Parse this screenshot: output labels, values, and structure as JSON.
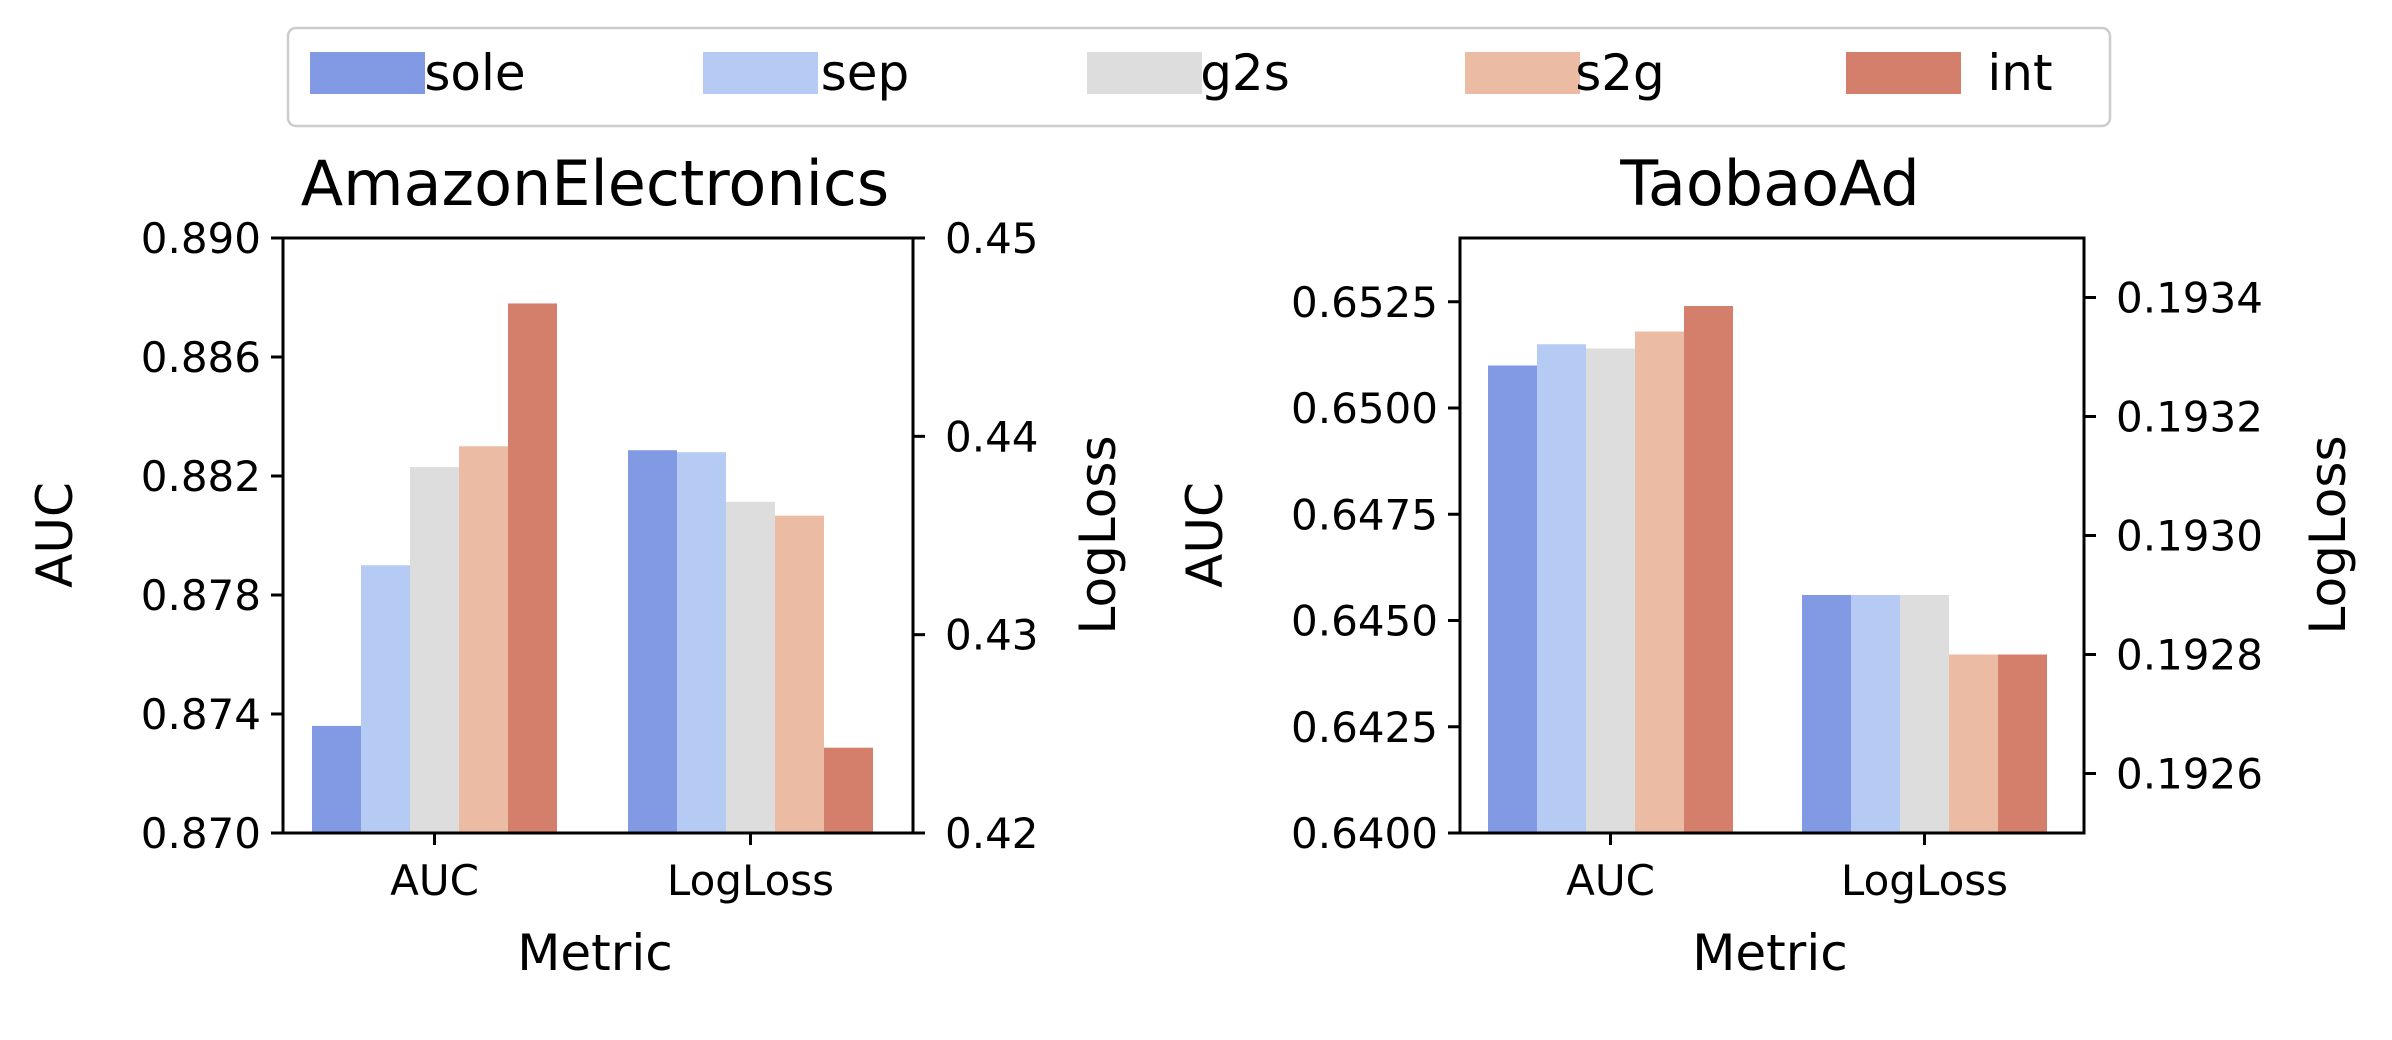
{
  "legend": {
    "entries": [
      {
        "label": "sole",
        "color": "#8299e3"
      },
      {
        "label": "sep",
        "color": "#b6cbf3"
      },
      {
        "label": "g2s",
        "color": "#dddddd"
      },
      {
        "label": "s2g",
        "color": "#ecbba3"
      },
      {
        "label": "int",
        "color": "#d47e6c"
      }
    ]
  },
  "chart_data": [
    {
      "type": "bar",
      "title": "AmazonElectronics",
      "xlabel": "Metric",
      "ylabel": "AUC",
      "ylabel_right": "LogLoss",
      "categories": [
        "AUC",
        "LogLoss"
      ],
      "ylim": [
        0.87,
        0.89
      ],
      "ylim_right": [
        0.42,
        0.45
      ],
      "yticks": [
        "0.870",
        "0.874",
        "0.878",
        "0.882",
        "0.886",
        "0.890"
      ],
      "yticks_right": [
        "0.42",
        "0.43",
        "0.44",
        "0.45"
      ],
      "series": [
        {
          "name": "sole",
          "auc": 0.8736,
          "logloss": 0.4393
        },
        {
          "name": "sep",
          "auc": 0.879,
          "logloss": 0.4392
        },
        {
          "name": "g2s",
          "auc": 0.8823,
          "logloss": 0.4367
        },
        {
          "name": "s2g",
          "auc": 0.883,
          "logloss": 0.436
        },
        {
          "name": "int",
          "auc": 0.8878,
          "logloss": 0.4243
        }
      ]
    },
    {
      "type": "bar",
      "title": "TaobaoAd",
      "xlabel": "Metric",
      "ylabel": "AUC",
      "ylabel_right": "LogLoss",
      "categories": [
        "AUC",
        "LogLoss"
      ],
      "ylim": [
        0.64,
        0.654
      ],
      "ylim_right": [
        0.1925,
        0.1935
      ],
      "yticks": [
        "0.6400",
        "0.6425",
        "0.6450",
        "0.6475",
        "0.6500",
        "0.6525"
      ],
      "yticks_right": [
        "0.1926",
        "0.1928",
        "0.1930",
        "0.1932",
        "0.1934"
      ],
      "series": [
        {
          "name": "sole",
          "auc": 0.651,
          "logloss": 0.1929
        },
        {
          "name": "sep",
          "auc": 0.6515,
          "logloss": 0.1929
        },
        {
          "name": "g2s",
          "auc": 0.6514,
          "logloss": 0.1929
        },
        {
          "name": "s2g",
          "auc": 0.6518,
          "logloss": 0.1928
        },
        {
          "name": "int",
          "auc": 0.6524,
          "logloss": 0.1928
        }
      ]
    }
  ]
}
